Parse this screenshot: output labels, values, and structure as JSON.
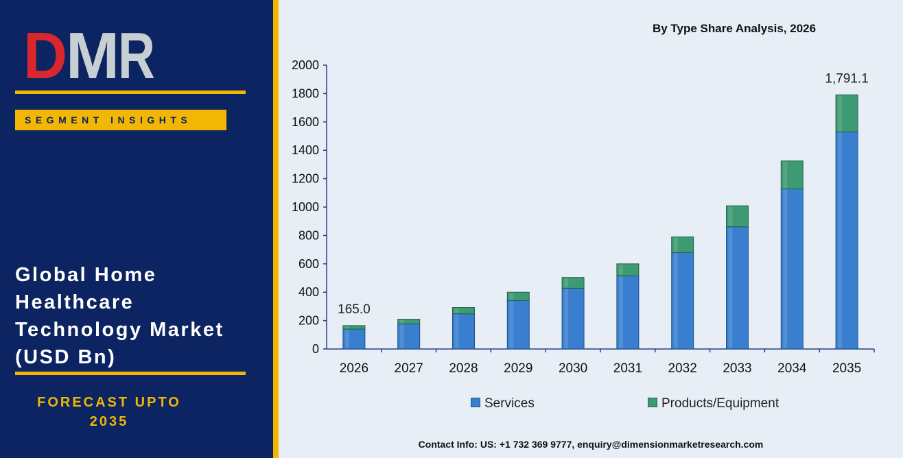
{
  "logo": {
    "text": "DMR",
    "colors": {
      "D": "#d9272e",
      "M": "#c8cfd2",
      "R": "#c8cfd2"
    }
  },
  "sidebar": {
    "segment_label": "SEGMENT INSIGHTS",
    "title_lines": [
      "Global Home",
      "Healthcare",
      "Technology Market",
      "(USD Bn)"
    ],
    "forecast_lines": [
      "FORECAST UPTO",
      "2035"
    ]
  },
  "colors": {
    "sidebar_bg": "#0c2461",
    "accent": "#f2b705",
    "services": "#3a7fcf",
    "products": "#3e9a72",
    "chart_bg": "#e7eef6"
  },
  "chart_data": {
    "type": "bar",
    "stacked": true,
    "title": "By Type Share Analysis, 2026",
    "categories": [
      "2026",
      "2027",
      "2028",
      "2029",
      "2030",
      "2031",
      "2032",
      "2033",
      "2034",
      "2035"
    ],
    "series": [
      {
        "name": "Services",
        "values": [
          140,
          177,
          248,
          341,
          428,
          516,
          680,
          861,
          1128,
          1530
        ]
      },
      {
        "name": "Products/Equipment",
        "values": [
          25,
          33,
          44,
          59,
          76,
          84,
          110,
          148,
          197,
          261
        ]
      }
    ],
    "data_labels": [
      {
        "category": "2026",
        "text": "165.0"
      },
      {
        "category": "2035",
        "text": "1,791.1"
      }
    ],
    "ylim": [
      0,
      2000
    ],
    "yticks": [
      0,
      200,
      400,
      600,
      800,
      1000,
      1200,
      1400,
      1600,
      1800,
      2000
    ],
    "xlabel": "",
    "ylabel": "",
    "grid": false,
    "legend_position": "bottom"
  },
  "footer": {
    "contact": "Contact Info: US: +1 732 369 9777, enquiry@dimensionmarketresearch.com"
  }
}
